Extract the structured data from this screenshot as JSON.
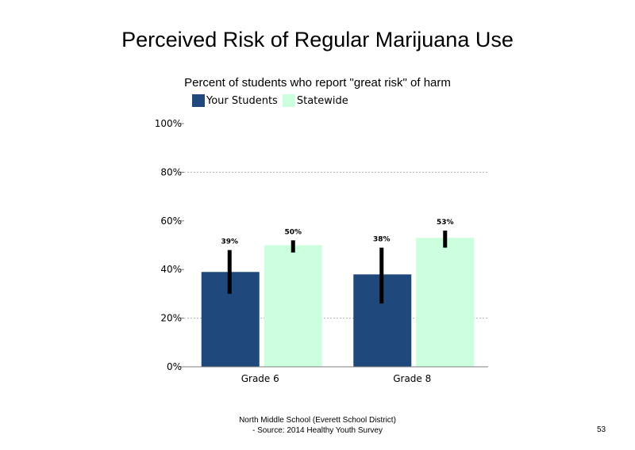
{
  "chart_data": {
    "type": "bar",
    "title": "Perceived Risk of Regular Marijuana Use",
    "subtitle": "Percent of students who report \"great risk\" of harm",
    "categories": [
      "Grade 6",
      "Grade 8"
    ],
    "series": [
      {
        "name": "Your Students",
        "values": [
          39,
          38
        ],
        "labels": [
          "39%",
          "38%"
        ],
        "error_low": [
          30,
          26
        ],
        "error_high": [
          48,
          49
        ],
        "color": "#1F497D"
      },
      {
        "name": "Statewide",
        "values": [
          50,
          53
        ],
        "labels": [
          "50%",
          "53%"
        ],
        "error_low": [
          47,
          49
        ],
        "error_high": [
          52,
          56
        ],
        "color": "#CCFFDD"
      }
    ],
    "ylim": [
      0,
      100
    ],
    "yticks": [
      0,
      20,
      40,
      60,
      80,
      100
    ],
    "ytick_labels": [
      "0%",
      "20%",
      "40%",
      "60%",
      "80%",
      "100%"
    ],
    "gridlines": [
      20,
      80
    ],
    "legend_position": "top",
    "error_bar_color": "#000000"
  },
  "footer": {
    "line1": "North Middle School (Everett School District)",
    "line2": "- Source: 2014 Healthy Youth Survey"
  },
  "page_number": "53"
}
